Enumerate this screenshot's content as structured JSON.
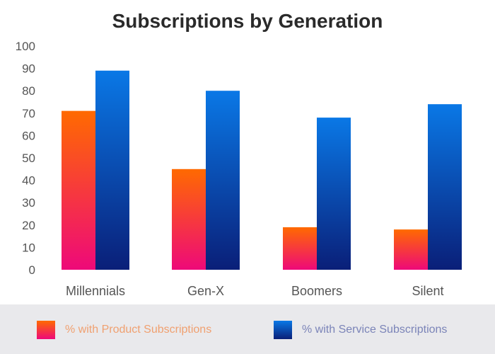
{
  "chart_data": {
    "type": "bar",
    "title": "Subscriptions by Generation",
    "xlabel": "",
    "ylabel": "",
    "ylim": [
      0,
      100
    ],
    "yticks": [
      0,
      10,
      20,
      30,
      40,
      50,
      60,
      70,
      80,
      90,
      100
    ],
    "grid": false,
    "legend_position": "bottom",
    "categories": [
      "Millennials",
      "Gen-X",
      "Boomers",
      "Silent"
    ],
    "series": [
      {
        "name": "% with Product Subscriptions",
        "values": [
          71,
          45,
          19,
          18
        ],
        "gradient": [
          "#ff6a00",
          "#ee0979"
        ]
      },
      {
        "name": "% with Service Subscriptions",
        "values": [
          89,
          80,
          68,
          74
        ],
        "gradient": [
          "#0a78e6",
          "#0a1f78"
        ]
      }
    ]
  }
}
